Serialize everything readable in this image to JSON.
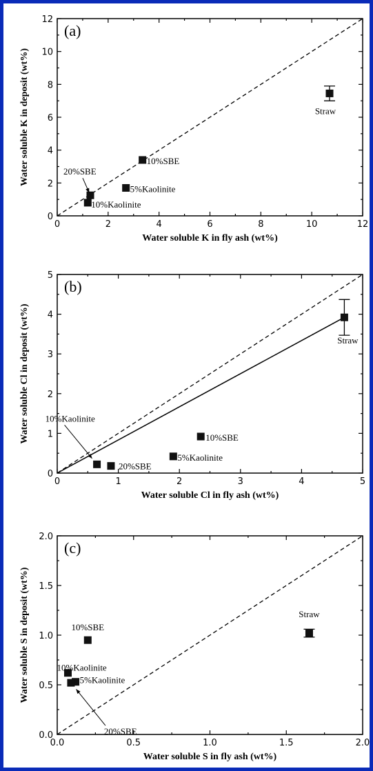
{
  "chart_data": [
    {
      "type": "scatter",
      "panel_label": "(a)",
      "xlabel": "Water soluble K in fly ash (wt%)",
      "ylabel": "Water soluble K in deposit (wt%)",
      "xlim": [
        0,
        12
      ],
      "ylim": [
        0,
        12
      ],
      "xticks": [
        "0",
        "2",
        "4",
        "6",
        "8",
        "10",
        "12"
      ],
      "yticks": [
        "0",
        "2",
        "4",
        "6",
        "8",
        "10",
        "12"
      ],
      "reference_line": "y = x (dashed)",
      "points": [
        {
          "label": "Straw",
          "x": 10.7,
          "y": 7.45,
          "err": 0.45
        },
        {
          "label": "10%SBE",
          "x": 3.35,
          "y": 3.4
        },
        {
          "label": "5%Kaolinite",
          "x": 2.7,
          "y": 1.7
        },
        {
          "label": "20%SBE",
          "x": 1.3,
          "y": 1.25
        },
        {
          "label": "10%Kaolinite",
          "x": 1.2,
          "y": 0.8
        }
      ]
    },
    {
      "type": "scatter",
      "panel_label": "(b)",
      "xlabel": "Water soluble Cl in fly ash (wt%)",
      "ylabel": "Water soluble Cl in deposit (wt%)",
      "xlim": [
        0,
        5
      ],
      "ylim": [
        0,
        5
      ],
      "xticks": [
        "0",
        "1",
        "2",
        "3",
        "4",
        "5"
      ],
      "yticks": [
        "0",
        "1",
        "2",
        "3",
        "4",
        "5"
      ],
      "reference_line": "y = x (dashed)",
      "fit_line": {
        "from": [
          0,
          0
        ],
        "to": [
          4.7,
          3.92
        ]
      },
      "points": [
        {
          "label": "Straw",
          "x": 4.7,
          "y": 3.92,
          "err": 0.45
        },
        {
          "label": "10%SBE",
          "x": 2.35,
          "y": 0.92
        },
        {
          "label": "5%Kaolinite",
          "x": 1.9,
          "y": 0.42
        },
        {
          "label": "10%Kaolinite",
          "x": 0.65,
          "y": 0.22
        },
        {
          "label": "20%SBE",
          "x": 0.88,
          "y": 0.18
        }
      ]
    },
    {
      "type": "scatter",
      "panel_label": "(c)",
      "xlabel": "Water soluble S in fly ash (wt%)",
      "ylabel": "Water soluble S in deposit (wt%)",
      "xlim": [
        0,
        2
      ],
      "ylim": [
        0,
        2
      ],
      "xticks": [
        "0.0",
        "0.5",
        "1.0",
        "1.5",
        "2.0"
      ],
      "yticks": [
        "0.0",
        "0.5",
        "1.0",
        "1.5",
        "2.0"
      ],
      "reference_line": "y = x (dashed)",
      "points": [
        {
          "label": "Straw",
          "x": 1.65,
          "y": 1.02,
          "err": 0.04
        },
        {
          "label": "10%SBE",
          "x": 0.2,
          "y": 0.95
        },
        {
          "label": "10%Kaolinite",
          "x": 0.07,
          "y": 0.62
        },
        {
          "label": "5%Kaolinite",
          "x": 0.12,
          "y": 0.53
        },
        {
          "label": "20%SBE",
          "x": 0.09,
          "y": 0.52
        }
      ]
    }
  ]
}
